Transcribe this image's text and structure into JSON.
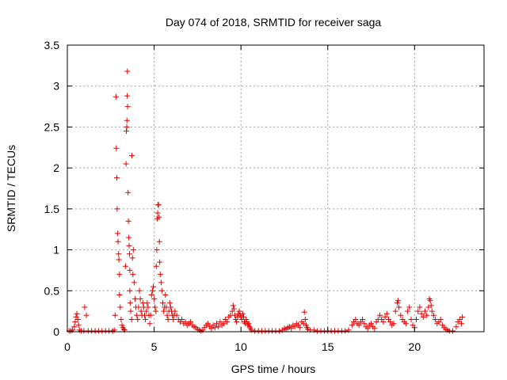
{
  "chart_data": {
    "type": "scatter",
    "title": "Day 074 of 2018, SRMTID for receiver saga",
    "xlabel": "GPS time / hours",
    "ylabel": "SRMTID / TECUs",
    "xlim": [
      0,
      24
    ],
    "ylim": [
      0,
      3.5
    ],
    "xticks": [
      0,
      5,
      10,
      15,
      20
    ],
    "xtick_labels": [
      "0",
      "5",
      "10",
      "15",
      "20"
    ],
    "yticks": [
      0,
      0.5,
      1,
      1.5,
      2,
      2.5,
      3,
      3.5
    ],
    "ytick_labels": [
      "0",
      "0.5",
      "1",
      "1.5",
      "2",
      "2.5",
      "3",
      "3.5"
    ],
    "grid": true,
    "marker": "+",
    "color": "#e00000",
    "series": [
      {
        "name": "SRMTID",
        "points": [
          [
            0.1,
            0.01
          ],
          [
            0.2,
            0.01
          ],
          [
            0.3,
            0.02
          ],
          [
            0.4,
            0.06
          ],
          [
            0.45,
            0.12
          ],
          [
            0.5,
            0.18
          ],
          [
            0.55,
            0.22
          ],
          [
            0.6,
            0.15
          ],
          [
            0.65,
            0.08
          ],
          [
            0.7,
            0.02
          ],
          [
            0.8,
            0.01
          ],
          [
            0.95,
            0.01
          ],
          [
            1.0,
            0.3
          ],
          [
            1.1,
            0.2
          ],
          [
            1.2,
            0.01
          ],
          [
            1.4,
            0.01
          ],
          [
            1.6,
            0.01
          ],
          [
            1.8,
            0.01
          ],
          [
            2.0,
            0.01
          ],
          [
            2.2,
            0.01
          ],
          [
            2.4,
            0.01
          ],
          [
            2.6,
            0.01
          ],
          [
            2.7,
            0.02
          ],
          [
            2.75,
            0.2
          ],
          [
            2.8,
            2.87
          ],
          [
            2.82,
            2.24
          ],
          [
            2.85,
            1.88
          ],
          [
            2.87,
            1.5
          ],
          [
            2.9,
            1.2
          ],
          [
            2.92,
            1.1
          ],
          [
            2.95,
            0.95
          ],
          [
            2.97,
            0.88
          ],
          [
            3.0,
            0.7
          ],
          [
            3.0,
            0.45
          ],
          [
            3.05,
            0.3
          ],
          [
            3.1,
            0.15
          ],
          [
            3.15,
            0.08
          ],
          [
            3.2,
            0.05
          ],
          [
            3.25,
            0.03
          ],
          [
            3.3,
            0.02
          ],
          [
            3.35,
            0.8
          ],
          [
            3.38,
            2.05
          ],
          [
            3.4,
            2.45
          ],
          [
            3.42,
            2.5
          ],
          [
            3.43,
            2.58
          ],
          [
            3.45,
            2.88
          ],
          [
            3.46,
            3.18
          ],
          [
            3.47,
            2.75
          ],
          [
            3.5,
            1.7
          ],
          [
            3.52,
            1.35
          ],
          [
            3.54,
            1.15
          ],
          [
            3.56,
            1.05
          ],
          [
            3.58,
            0.95
          ],
          [
            3.6,
            0.75
          ],
          [
            3.6,
            0.5
          ],
          [
            3.62,
            0.35
          ],
          [
            3.65,
            0.25
          ],
          [
            3.7,
            0.15
          ],
          [
            3.72,
            2.15
          ],
          [
            3.75,
            0.9
          ],
          [
            3.78,
            0.7
          ],
          [
            3.8,
            1.0
          ],
          [
            3.85,
            0.6
          ],
          [
            3.9,
            0.4
          ],
          [
            3.95,
            0.3
          ],
          [
            4.0,
            0.2
          ],
          [
            4.05,
            0.15
          ],
          [
            4.1,
            0.3
          ],
          [
            4.15,
            0.5
          ],
          [
            4.2,
            0.4
          ],
          [
            4.25,
            0.25
          ],
          [
            4.3,
            0.2
          ],
          [
            4.35,
            0.35
          ],
          [
            4.4,
            0.3
          ],
          [
            4.45,
            0.2
          ],
          [
            4.5,
            0.15
          ],
          [
            4.55,
            0.25
          ],
          [
            4.6,
            0.35
          ],
          [
            4.65,
            0.3
          ],
          [
            4.7,
            0.2
          ],
          [
            4.75,
            0.1
          ],
          [
            4.8,
            0.2
          ],
          [
            4.85,
            0.45
          ],
          [
            4.9,
            0.5
          ],
          [
            4.95,
            0.55
          ],
          [
            5.0,
            0.4
          ],
          [
            5.05,
            0.3
          ],
          [
            5.1,
            0.25
          ],
          [
            5.12,
            0.8
          ],
          [
            5.15,
            1.0
          ],
          [
            5.18,
            1.38
          ],
          [
            5.2,
            1.45
          ],
          [
            5.22,
            1.55
          ],
          [
            5.25,
            1.55
          ],
          [
            5.28,
            1.4
          ],
          [
            5.3,
            1.1
          ],
          [
            5.32,
            0.85
          ],
          [
            5.35,
            0.7
          ],
          [
            5.4,
            0.6
          ],
          [
            5.45,
            0.5
          ],
          [
            5.5,
            0.35
          ],
          [
            5.55,
            0.25
          ],
          [
            5.6,
            0.3
          ],
          [
            5.65,
            0.45
          ],
          [
            5.7,
            0.3
          ],
          [
            5.75,
            0.2
          ],
          [
            5.8,
            0.15
          ],
          [
            5.85,
            0.25
          ],
          [
            5.9,
            0.35
          ],
          [
            5.95,
            0.3
          ],
          [
            6.0,
            0.25
          ],
          [
            6.05,
            0.2
          ],
          [
            6.1,
            0.15
          ],
          [
            6.15,
            0.2
          ],
          [
            6.2,
            0.25
          ],
          [
            6.3,
            0.2
          ],
          [
            6.4,
            0.15
          ],
          [
            6.5,
            0.12
          ],
          [
            6.6,
            0.15
          ],
          [
            6.7,
            0.1
          ],
          [
            6.8,
            0.12
          ],
          [
            6.9,
            0.08
          ],
          [
            7.0,
            0.1
          ],
          [
            7.1,
            0.12
          ],
          [
            7.2,
            0.08
          ],
          [
            7.3,
            0.06
          ],
          [
            7.4,
            0.05
          ],
          [
            7.5,
            0.03
          ],
          [
            7.6,
            0.02
          ],
          [
            7.7,
            0.01
          ],
          [
            7.8,
            0.02
          ],
          [
            7.9,
            0.05
          ],
          [
            8.0,
            0.08
          ],
          [
            8.1,
            0.1
          ],
          [
            8.2,
            0.06
          ],
          [
            8.3,
            0.04
          ],
          [
            8.4,
            0.08
          ],
          [
            8.5,
            0.05
          ],
          [
            8.6,
            0.1
          ],
          [
            8.7,
            0.06
          ],
          [
            8.8,
            0.12
          ],
          [
            8.9,
            0.08
          ],
          [
            9.0,
            0.1
          ],
          [
            9.1,
            0.15
          ],
          [
            9.2,
            0.12
          ],
          [
            9.3,
            0.18
          ],
          [
            9.4,
            0.2
          ],
          [
            9.5,
            0.25
          ],
          [
            9.55,
            0.32
          ],
          [
            9.6,
            0.28
          ],
          [
            9.65,
            0.2
          ],
          [
            9.7,
            0.15
          ],
          [
            9.75,
            0.12
          ],
          [
            9.8,
            0.18
          ],
          [
            9.85,
            0.22
          ],
          [
            9.9,
            0.25
          ],
          [
            9.95,
            0.2
          ],
          [
            10.0,
            0.18
          ],
          [
            10.05,
            0.15
          ],
          [
            10.1,
            0.22
          ],
          [
            10.15,
            0.18
          ],
          [
            10.2,
            0.12
          ],
          [
            10.25,
            0.1
          ],
          [
            10.3,
            0.15
          ],
          [
            10.35,
            0.12
          ],
          [
            10.4,
            0.08
          ],
          [
            10.45,
            0.1
          ],
          [
            10.5,
            0.06
          ],
          [
            10.55,
            0.04
          ],
          [
            10.6,
            0.02
          ],
          [
            10.8,
            0.01
          ],
          [
            11.0,
            0.01
          ],
          [
            11.2,
            0.01
          ],
          [
            11.4,
            0.01
          ],
          [
            11.6,
            0.01
          ],
          [
            11.8,
            0.01
          ],
          [
            12.0,
            0.01
          ],
          [
            12.2,
            0.01
          ],
          [
            12.4,
            0.02
          ],
          [
            12.5,
            0.04
          ],
          [
            12.6,
            0.03
          ],
          [
            12.7,
            0.05
          ],
          [
            12.8,
            0.06
          ],
          [
            12.9,
            0.04
          ],
          [
            13.0,
            0.08
          ],
          [
            13.1,
            0.06
          ],
          [
            13.2,
            0.1
          ],
          [
            13.3,
            0.08
          ],
          [
            13.4,
            0.05
          ],
          [
            13.5,
            0.12
          ],
          [
            13.6,
            0.1
          ],
          [
            13.65,
            0.24
          ],
          [
            13.7,
            0.15
          ],
          [
            13.75,
            0.08
          ],
          [
            13.8,
            0.05
          ],
          [
            13.85,
            0.03
          ],
          [
            14.0,
            0.02
          ],
          [
            14.2,
            0.02
          ],
          [
            14.4,
            0.01
          ],
          [
            14.6,
            0.01
          ],
          [
            14.8,
            0.01
          ],
          [
            15.0,
            0.01
          ],
          [
            15.2,
            0.01
          ],
          [
            15.4,
            0.01
          ],
          [
            15.6,
            0.01
          ],
          [
            15.8,
            0.01
          ],
          [
            16.0,
            0.01
          ],
          [
            16.2,
            0.02
          ],
          [
            16.4,
            0.08
          ],
          [
            16.5,
            0.12
          ],
          [
            16.6,
            0.15
          ],
          [
            16.7,
            0.1
          ],
          [
            16.8,
            0.08
          ],
          [
            16.9,
            0.12
          ],
          [
            17.0,
            0.15
          ],
          [
            17.1,
            0.1
          ],
          [
            17.2,
            0.06
          ],
          [
            17.3,
            0.04
          ],
          [
            17.4,
            0.08
          ],
          [
            17.5,
            0.1
          ],
          [
            17.6,
            0.06
          ],
          [
            17.7,
            0.04
          ],
          [
            17.8,
            0.12
          ],
          [
            17.9,
            0.15
          ],
          [
            18.0,
            0.2
          ],
          [
            18.1,
            0.15
          ],
          [
            18.2,
            0.12
          ],
          [
            18.3,
            0.18
          ],
          [
            18.4,
            0.22
          ],
          [
            18.5,
            0.15
          ],
          [
            18.6,
            0.12
          ],
          [
            18.7,
            0.08
          ],
          [
            18.8,
            0.1
          ],
          [
            18.9,
            0.25
          ],
          [
            19.0,
            0.35
          ],
          [
            19.05,
            0.38
          ],
          [
            19.1,
            0.3
          ],
          [
            19.2,
            0.2
          ],
          [
            19.3,
            0.15
          ],
          [
            19.4,
            0.12
          ],
          [
            19.5,
            0.1
          ],
          [
            19.6,
            0.25
          ],
          [
            19.7,
            0.3
          ],
          [
            19.8,
            0.15
          ],
          [
            19.9,
            0.08
          ],
          [
            20.0,
            0.05
          ],
          [
            20.1,
            0.15
          ],
          [
            20.2,
            0.25
          ],
          [
            20.3,
            0.3
          ],
          [
            20.4,
            0.22
          ],
          [
            20.5,
            0.18
          ],
          [
            20.6,
            0.25
          ],
          [
            20.7,
            0.2
          ],
          [
            20.8,
            0.3
          ],
          [
            20.85,
            0.4
          ],
          [
            20.9,
            0.38
          ],
          [
            20.95,
            0.32
          ],
          [
            21.0,
            0.25
          ],
          [
            21.1,
            0.2
          ],
          [
            21.2,
            0.15
          ],
          [
            21.3,
            0.1
          ],
          [
            21.4,
            0.12
          ],
          [
            21.5,
            0.15
          ],
          [
            21.6,
            0.08
          ],
          [
            21.7,
            0.05
          ],
          [
            21.8,
            0.03
          ],
          [
            21.9,
            0.02
          ],
          [
            22.0,
            0.01
          ],
          [
            22.2,
            0.01
          ],
          [
            22.4,
            0.06
          ],
          [
            22.5,
            0.12
          ],
          [
            22.6,
            0.15
          ],
          [
            22.7,
            0.1
          ],
          [
            22.75,
            0.18
          ]
        ]
      }
    ]
  }
}
